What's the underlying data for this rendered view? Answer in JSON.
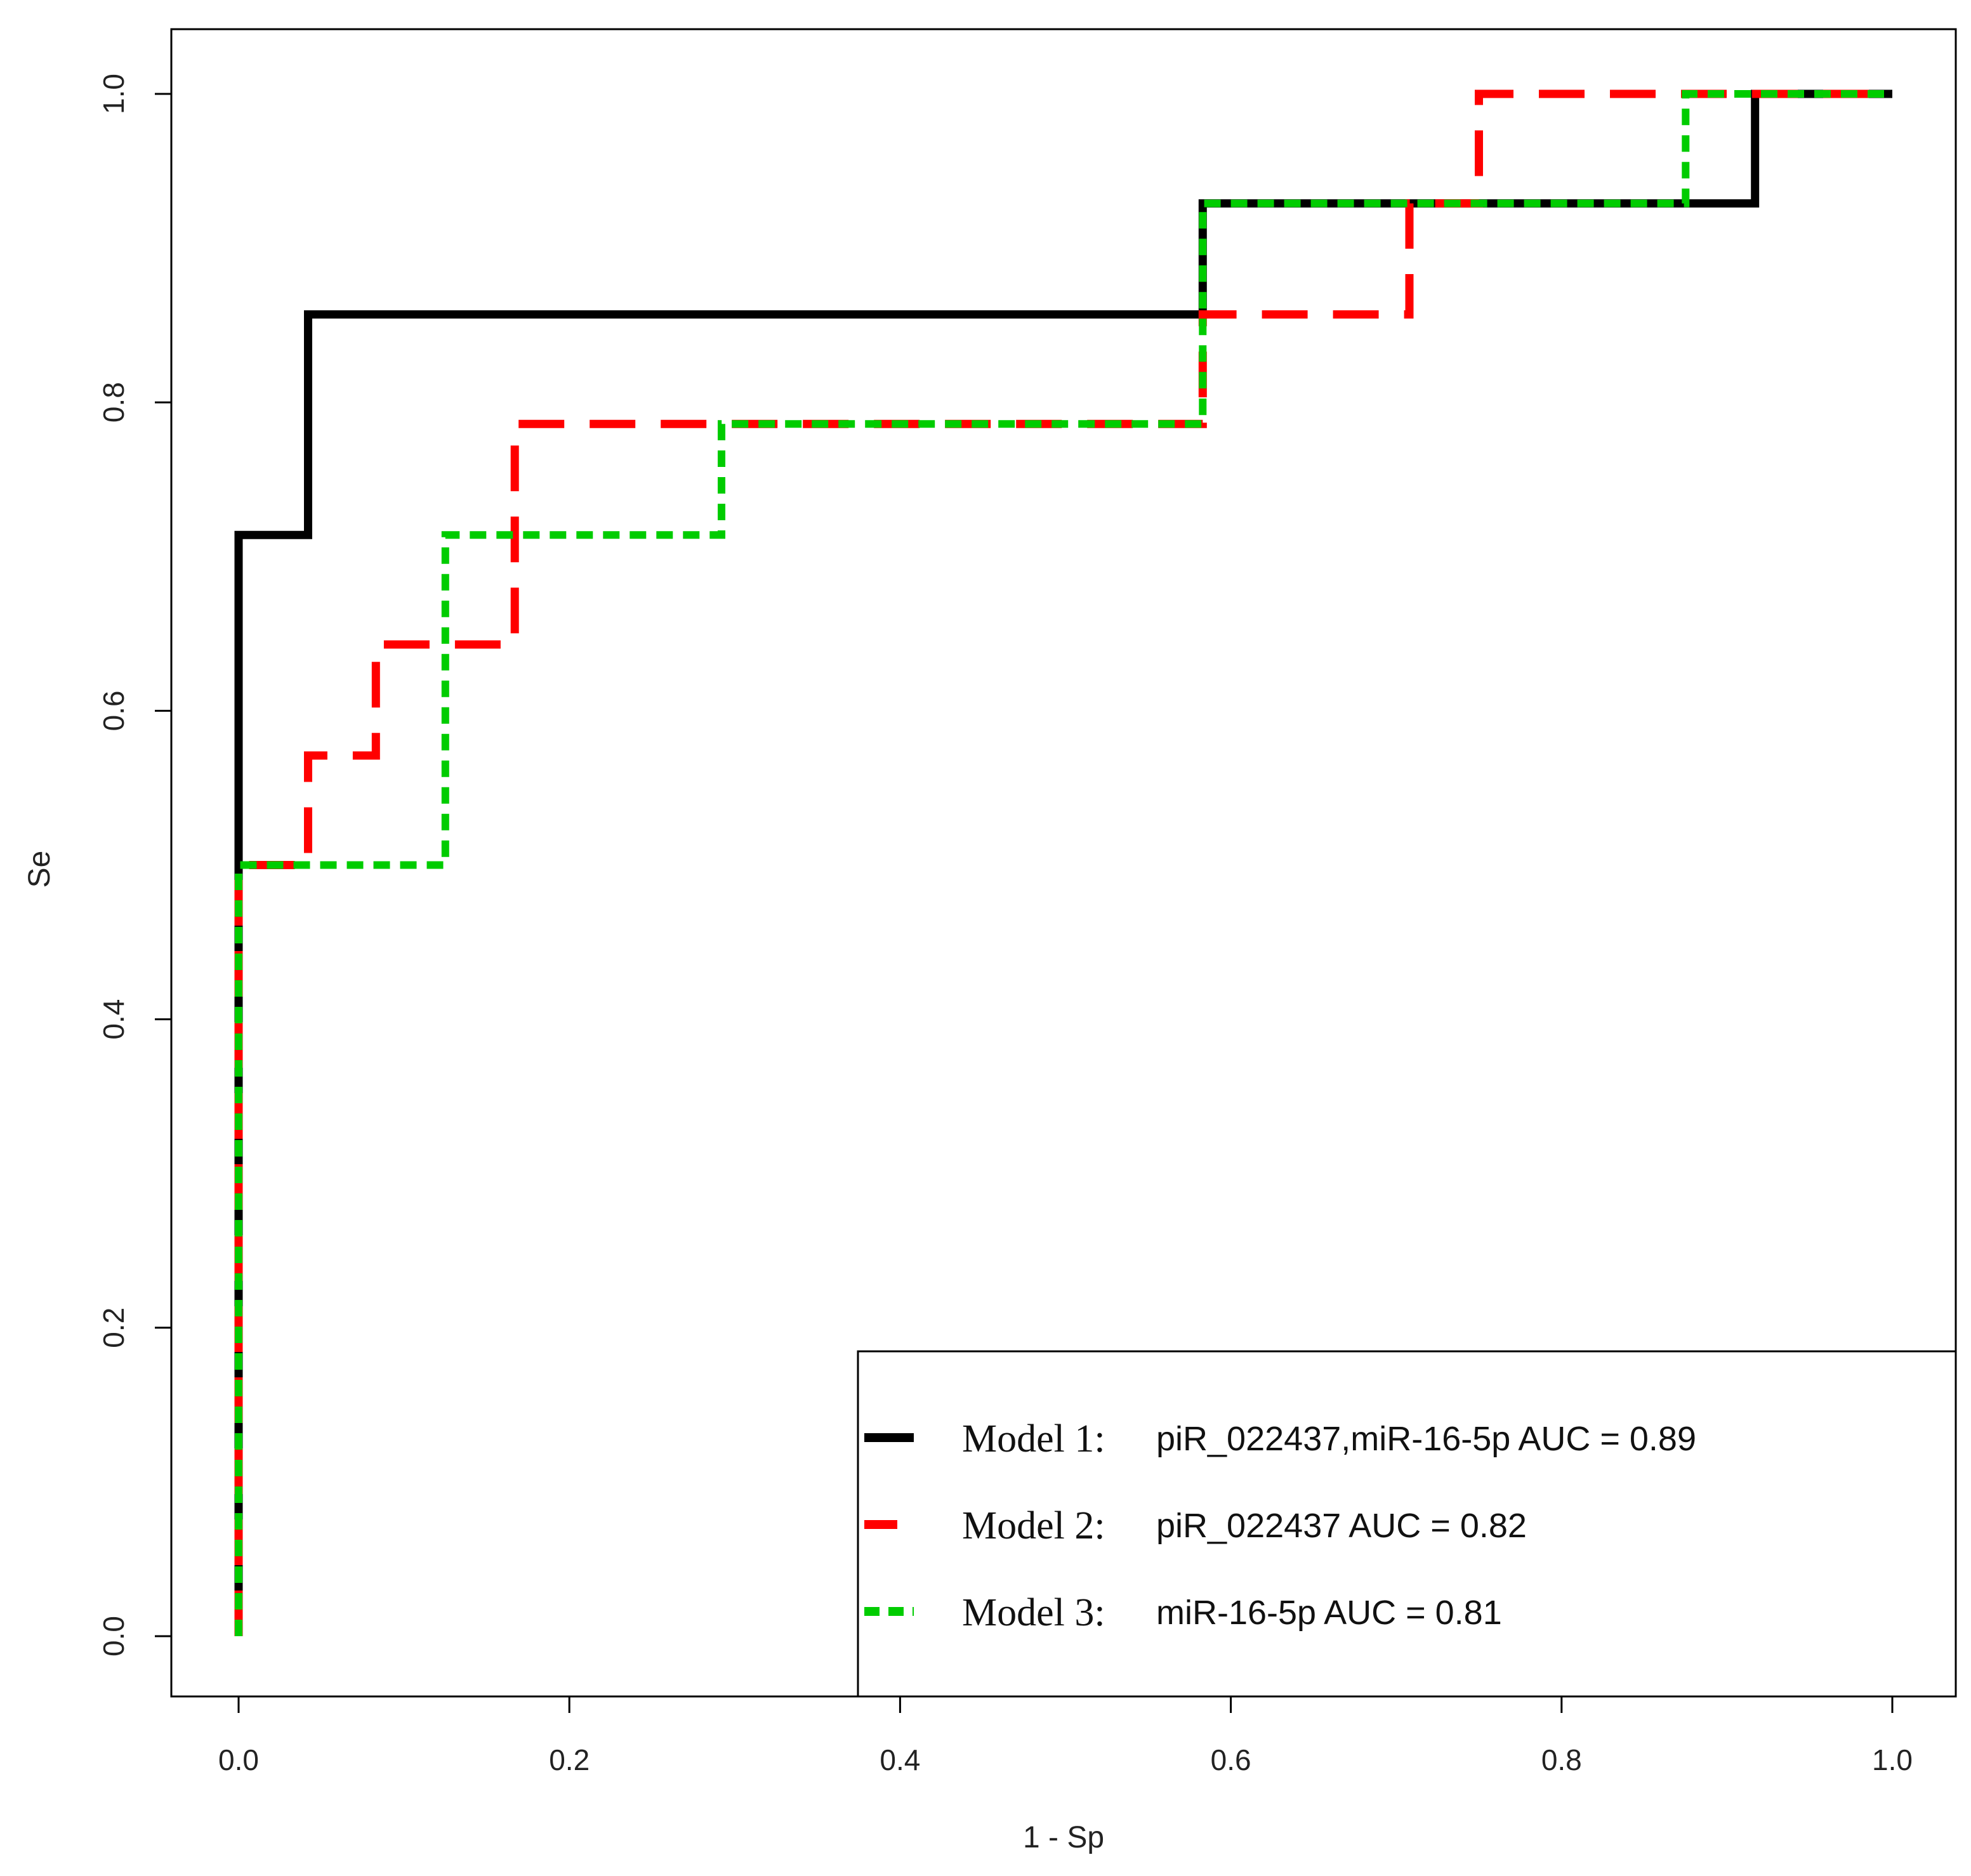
{
  "chart_data": {
    "type": "line",
    "xlabel": "1 - Sp",
    "ylabel": "Se",
    "xlim": [
      -0.04,
      1.04
    ],
    "ylim": [
      -0.04,
      1.04
    ],
    "x_ticks": [
      0.0,
      0.2,
      0.4,
      0.6,
      0.8,
      1.0
    ],
    "y_ticks": [
      0.0,
      0.2,
      0.4,
      0.6,
      0.8,
      1.0
    ],
    "x_tick_labels": [
      "0.0",
      "0.2",
      "0.4",
      "0.6",
      "0.8",
      "1.0"
    ],
    "y_tick_labels": [
      "0.0",
      "0.2",
      "0.4",
      "0.6",
      "0.8",
      "1.0"
    ],
    "grid": false,
    "legend_position": "bottom-right",
    "series": [
      {
        "model": "Model 1:",
        "desc": "piR_022437,miR-16-5p AUC =  0.89",
        "color": "#000000",
        "dash": "solid",
        "points": [
          [
            0,
            0
          ],
          [
            0,
            0.714
          ],
          [
            0.042,
            0.714
          ],
          [
            0.042,
            0.857
          ],
          [
            0.583,
            0.857
          ],
          [
            0.583,
            0.929
          ],
          [
            0.917,
            0.929
          ],
          [
            0.917,
            1.0
          ],
          [
            1.0,
            1.0
          ]
        ]
      },
      {
        "model": "Model 2:",
        "desc": "piR_022437 AUC =  0.82",
        "color": "#ff0000",
        "dash": "dashed",
        "points": [
          [
            0,
            0
          ],
          [
            0,
            0.5
          ],
          [
            0.042,
            0.5
          ],
          [
            0.042,
            0.571
          ],
          [
            0.083,
            0.571
          ],
          [
            0.083,
            0.643
          ],
          [
            0.167,
            0.643
          ],
          [
            0.167,
            0.786
          ],
          [
            0.583,
            0.786
          ],
          [
            0.583,
            0.857
          ],
          [
            0.708,
            0.857
          ],
          [
            0.708,
            0.929
          ],
          [
            0.75,
            0.929
          ],
          [
            0.75,
            1.0
          ],
          [
            1.0,
            1.0
          ]
        ]
      },
      {
        "model": "Model 3:",
        "desc": "miR-16-5p AUC =  0.81",
        "color": "#00cc00",
        "dash": "dotted",
        "points": [
          [
            0,
            0
          ],
          [
            0,
            0.5
          ],
          [
            0.125,
            0.5
          ],
          [
            0.125,
            0.714
          ],
          [
            0.292,
            0.714
          ],
          [
            0.292,
            0.786
          ],
          [
            0.583,
            0.786
          ],
          [
            0.583,
            0.929
          ],
          [
            0.875,
            0.929
          ],
          [
            0.875,
            1.0
          ],
          [
            1.0,
            1.0
          ]
        ]
      }
    ]
  }
}
